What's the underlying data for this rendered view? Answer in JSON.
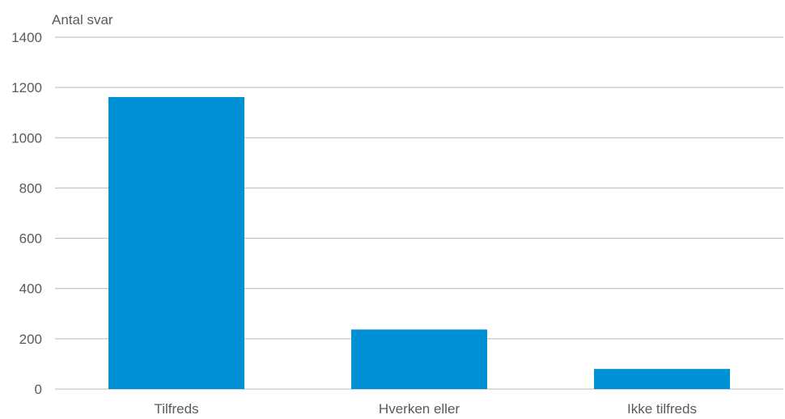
{
  "chart_data": {
    "type": "bar",
    "ylabel": "Antal svar",
    "categories": [
      "Tilfreds",
      "Hverken eller",
      "Ikke tilfreds"
    ],
    "values": [
      1162,
      237,
      80
    ],
    "ylim": [
      0,
      1400
    ],
    "yticks": [
      0,
      200,
      400,
      600,
      800,
      1000,
      1200,
      1400
    ],
    "grid": true,
    "bar_color": "#0090d6",
    "grid_color": "#b8b8b8",
    "text_color": "#5a5a5a"
  }
}
